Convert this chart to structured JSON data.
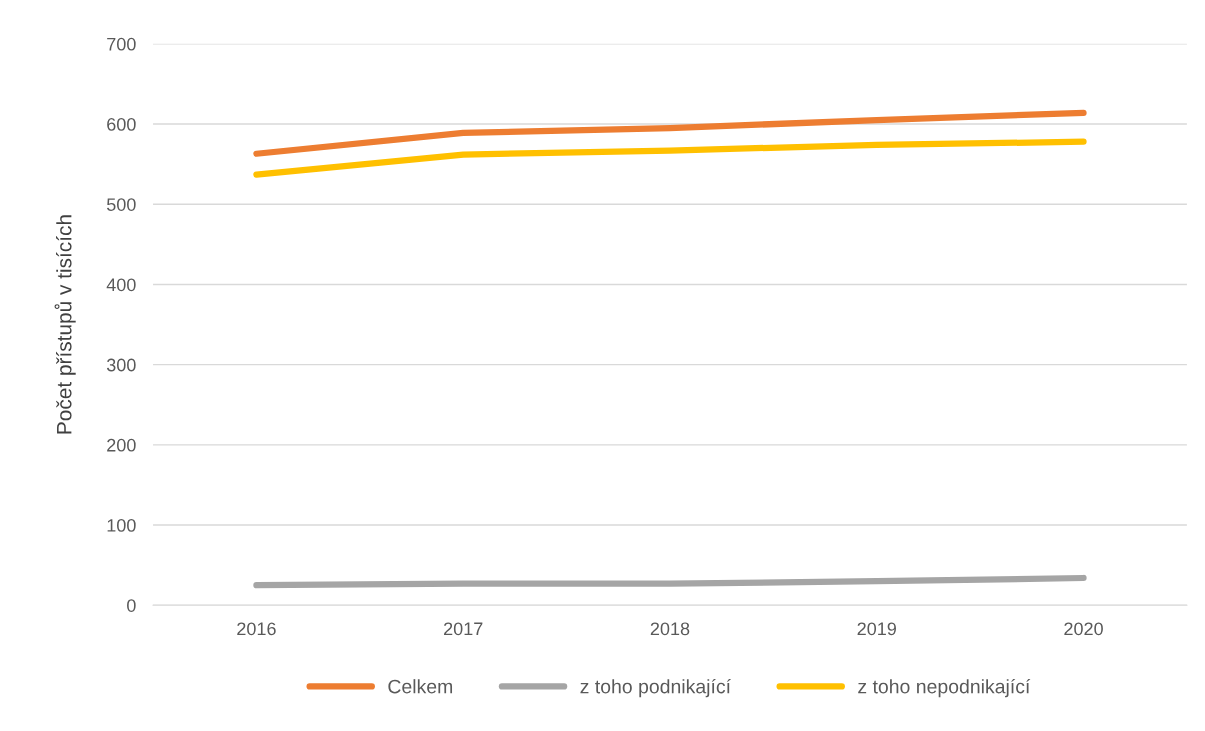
{
  "chart_data": {
    "type": "line",
    "ylabel": "Počet přístupů v tisících",
    "categories": [
      "2016",
      "2017",
      "2018",
      "2019",
      "2020"
    ],
    "series": [
      {
        "name": "Celkem",
        "color": "#ed7d31",
        "values": [
          563,
          589,
          595,
          605,
          614
        ]
      },
      {
        "name": "z toho podnikající",
        "color": "#a5a5a5",
        "values": [
          25,
          27,
          27,
          30,
          34
        ]
      },
      {
        "name": "z toho nepodnikající",
        "color": "#ffc000",
        "values": [
          537,
          562,
          567,
          574,
          578
        ]
      }
    ],
    "ylim": [
      0,
      700
    ],
    "yticks": [
      0,
      100,
      200,
      300,
      400,
      500,
      600,
      700
    ],
    "grid": "y",
    "legend": "bottom",
    "marker": "none",
    "line_style": "solid"
  }
}
